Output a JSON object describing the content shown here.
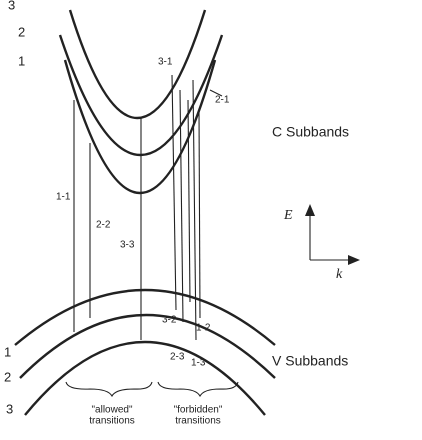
{
  "conduction": {
    "title": "C Subbands",
    "labels": [
      "1",
      "2",
      "3"
    ]
  },
  "valence": {
    "title": "V Subbands",
    "labels": [
      "1",
      "2",
      "3"
    ]
  },
  "transitions": [
    "1-1",
    "2-2",
    "3-3",
    "3-1",
    "2-1",
    "3-2",
    "1-2",
    "2-3",
    "1-3"
  ],
  "axes": {
    "energy": "E",
    "wavevector": "k"
  },
  "regions": [
    {
      "line1": "\"allowed\"",
      "line2": "transitions"
    },
    {
      "line1": "\"forbidden\"",
      "line2": "transitions"
    }
  ]
}
